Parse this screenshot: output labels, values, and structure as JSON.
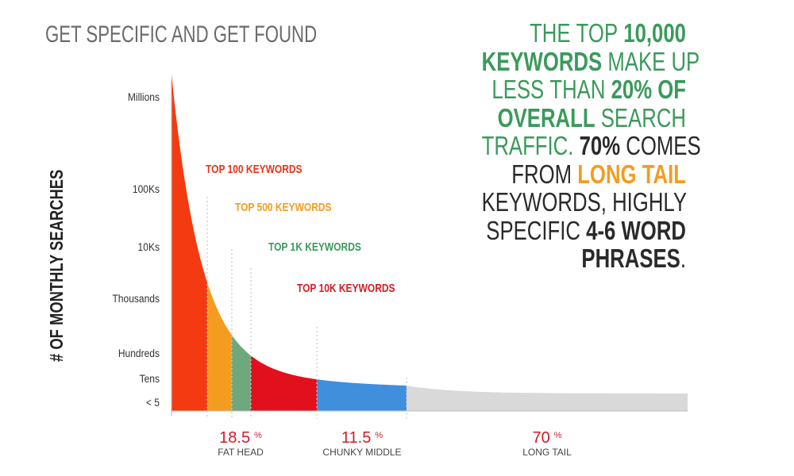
{
  "title": "GET SPECIFIC AND GET FOUND",
  "headline": {
    "lines": [
      [
        {
          "t": "THE TOP ",
          "c": "g",
          "b": false
        },
        {
          "t": "10,000",
          "c": "g",
          "b": true
        }
      ],
      [
        {
          "t": "KEYWORDS",
          "c": "g",
          "b": true
        },
        {
          "t": " MAKE UP",
          "c": "g",
          "b": false
        }
      ],
      [
        {
          "t": "LESS THAN ",
          "c": "g",
          "b": false
        },
        {
          "t": "20% OF",
          "c": "g",
          "b": true
        }
      ],
      [
        {
          "t": "OVERALL",
          "c": "g",
          "b": true
        },
        {
          "t": " SEARCH",
          "c": "g",
          "b": false
        }
      ],
      [
        {
          "t": "TRAFFIC. ",
          "c": "g",
          "b": false
        },
        {
          "t": "70%",
          "c": "d",
          "b": true
        },
        {
          "t": " COMES",
          "c": "d",
          "b": false
        }
      ],
      [
        {
          "t": "FROM ",
          "c": "d",
          "b": false
        },
        {
          "t": "LONG TAIL",
          "c": "o",
          "b": true
        }
      ],
      [
        {
          "t": "KEYWORDS, HIGHLY",
          "c": "d",
          "b": false
        }
      ],
      [
        {
          "t": "SPECIFIC ",
          "c": "d",
          "b": false
        },
        {
          "t": "4-6 WORD",
          "c": "d",
          "b": true
        }
      ],
      [
        {
          "t": "PHRASES",
          "c": "d",
          "b": true
        },
        {
          "t": ".",
          "c": "d",
          "b": false
        }
      ]
    ]
  },
  "chart_data": {
    "type": "area",
    "ylabel": "# OF MONTHLY SEARCHES",
    "y_ticks": [
      "Millions",
      "100Ks",
      "10Ks",
      "Thousands",
      "Hundreds",
      "Tens",
      "< 5"
    ],
    "regions": [
      {
        "label": "TOP 100 KEYWORDS",
        "color": "#f33a10",
        "label_color": "#e8321a"
      },
      {
        "label": "TOP 500 KEYWORDS",
        "color": "#f39c20",
        "label_color": "#f39c20"
      },
      {
        "label": "TOP 1K KEYWORDS",
        "color": "#6ea87c",
        "label_color": "#3a9a5b"
      },
      {
        "label": "TOP 10K KEYWORDS",
        "color": "#e2101c",
        "label_color": "#d41a24"
      },
      {
        "label": "",
        "color": "#3f8fdd"
      },
      {
        "label": "",
        "color": "#d9d9d9"
      }
    ],
    "segments": [
      {
        "percent": "18.5",
        "unit": "%",
        "name": "FAT HEAD"
      },
      {
        "percent": "11.5",
        "unit": "%",
        "name": "CHUNKY MIDDLE"
      },
      {
        "percent": "70",
        "unit": "%",
        "name": "LONG TAIL"
      }
    ],
    "percent_color": "#d41a24"
  }
}
